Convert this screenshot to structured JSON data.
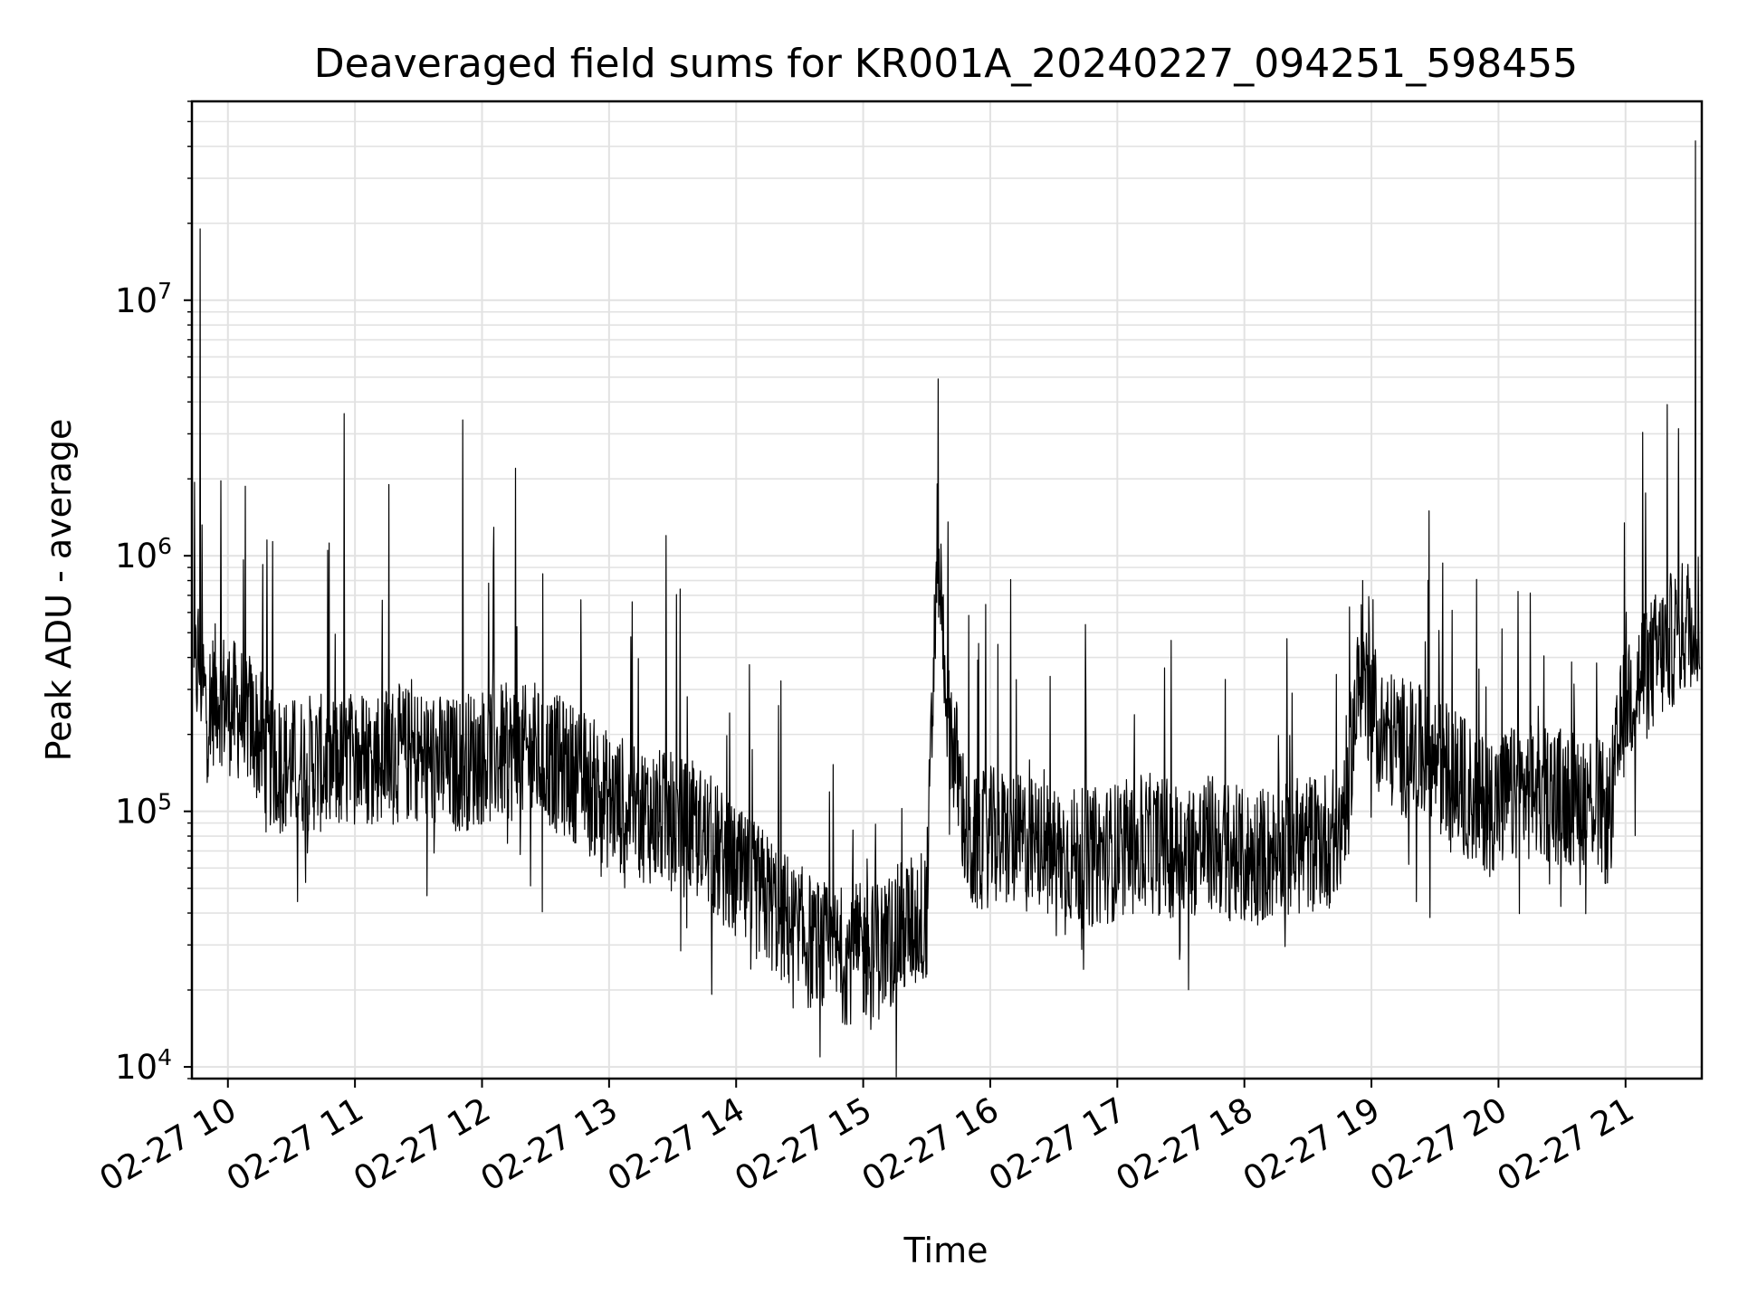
{
  "chart_data": {
    "type": "line",
    "title": "Deaveraged field sums for KR001A_20240227_094251_598455",
    "xlabel": "Time",
    "ylabel": "Peak ADU - average",
    "yscale": "log",
    "ylim": [
      9000,
      60000000
    ],
    "xlim": [
      "2024-02-27 09:43",
      "2024-02-27 21:36"
    ],
    "x_ticks": [
      "02-27 10",
      "02-27 11",
      "02-27 12",
      "02-27 13",
      "02-27 14",
      "02-27 15",
      "02-27 16",
      "02-27 17",
      "02-27 18",
      "02-27 19",
      "02-27 20",
      "02-27 21"
    ],
    "y_ticks": [
      {
        "base": "10",
        "exp": "4"
      },
      {
        "base": "10",
        "exp": "5"
      },
      {
        "base": "10",
        "exp": "6"
      },
      {
        "base": "10",
        "exp": "7"
      }
    ],
    "grid": true,
    "line_color": "#000000",
    "series": [
      {
        "x": [
          "2024-02-27 09:44",
          "2024-02-27 09:46",
          "2024-02-27 09:50",
          "2024-02-27 09:55",
          "2024-02-27 10:00",
          "2024-02-27 10:10",
          "2024-02-27 10:20",
          "2024-02-27 10:30",
          "2024-02-27 10:40",
          "2024-02-27 10:50",
          "2024-02-27 11:00",
          "2024-02-27 11:15",
          "2024-02-27 11:30",
          "2024-02-27 11:45",
          "2024-02-27 12:00",
          "2024-02-27 12:15",
          "2024-02-27 12:30",
          "2024-02-27 12:45",
          "2024-02-27 13:00",
          "2024-02-27 13:15",
          "2024-02-27 13:30",
          "2024-02-27 13:45",
          "2024-02-27 14:00",
          "2024-02-27 14:15",
          "2024-02-27 14:30",
          "2024-02-27 14:45",
          "2024-02-27 15:00",
          "2024-02-27 15:10",
          "2024-02-27 15:20",
          "2024-02-27 15:30",
          "2024-02-27 15:35",
          "2024-02-27 15:40",
          "2024-02-27 15:50",
          "2024-02-27 16:00",
          "2024-02-27 16:15",
          "2024-02-27 16:30",
          "2024-02-27 16:45",
          "2024-02-27 17:00",
          "2024-02-27 17:15",
          "2024-02-27 17:30",
          "2024-02-27 17:45",
          "2024-02-27 18:00",
          "2024-02-27 18:15",
          "2024-02-27 18:30",
          "2024-02-27 18:45",
          "2024-02-27 18:55",
          "2024-02-27 19:05",
          "2024-02-27 19:20",
          "2024-02-27 19:35",
          "2024-02-27 19:50",
          "2024-02-27 20:00",
          "2024-02-27 20:15",
          "2024-02-27 20:30",
          "2024-02-27 20:45",
          "2024-02-27 20:52",
          "2024-02-27 21:00",
          "2024-02-27 21:10",
          "2024-02-27 21:20",
          "2024-02-27 21:30",
          "2024-02-27 21:35"
        ],
        "y": [
          300000,
          400000,
          250000,
          300000,
          260000,
          230000,
          160000,
          150000,
          155000,
          150000,
          160000,
          170000,
          165000,
          150000,
          165000,
          170000,
          160000,
          140000,
          110000,
          100000,
          90000,
          80000,
          55000,
          45000,
          33000,
          27000,
          28000,
          30000,
          35000,
          40000,
          1200000,
          250000,
          70000,
          80000,
          75000,
          70000,
          65000,
          70000,
          75000,
          70000,
          75000,
          65000,
          70000,
          75000,
          80000,
          350000,
          200000,
          170000,
          150000,
          110000,
          110000,
          120000,
          115000,
          115000,
          90000,
          280000,
          350000,
          450000,
          550000,
          600000
        ]
      }
    ],
    "spikes": [
      {
        "x": "2024-02-27 09:48",
        "y": 19000000
      },
      {
        "x": "2024-02-27 10:56",
        "y": 3600000
      },
      {
        "x": "2024-02-27 11:52",
        "y": 3400000
      },
      {
        "x": "2024-02-27 12:17",
        "y": 2200000
      },
      {
        "x": "2024-02-27 11:17",
        "y": 1900000
      },
      {
        "x": "2024-02-27 13:28",
        "y": 1200000
      },
      {
        "x": "2024-02-27 18:57",
        "y": 800000
      },
      {
        "x": "2024-02-27 21:34",
        "y": 42000000
      }
    ]
  }
}
